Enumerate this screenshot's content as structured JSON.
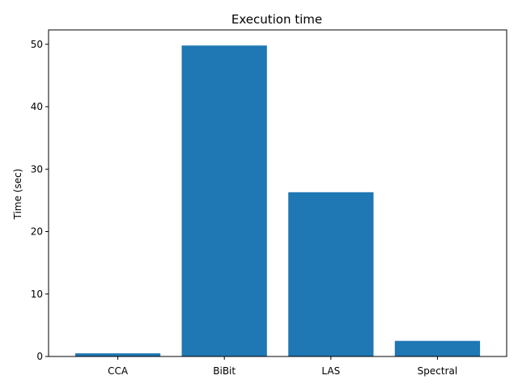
{
  "chart_data": {
    "type": "bar",
    "title": "Execution time",
    "xlabel": "",
    "ylabel": "Time (sec)",
    "categories": [
      "CCA",
      "BiBit",
      "LAS",
      "Spectral"
    ],
    "values": [
      0.5,
      49.8,
      26.3,
      2.5
    ],
    "ylim": [
      0,
      52.3
    ],
    "yticks": [
      0,
      10,
      20,
      30,
      40,
      50
    ],
    "bar_color": "#1f77b4",
    "grid": false,
    "legend": "none"
  }
}
